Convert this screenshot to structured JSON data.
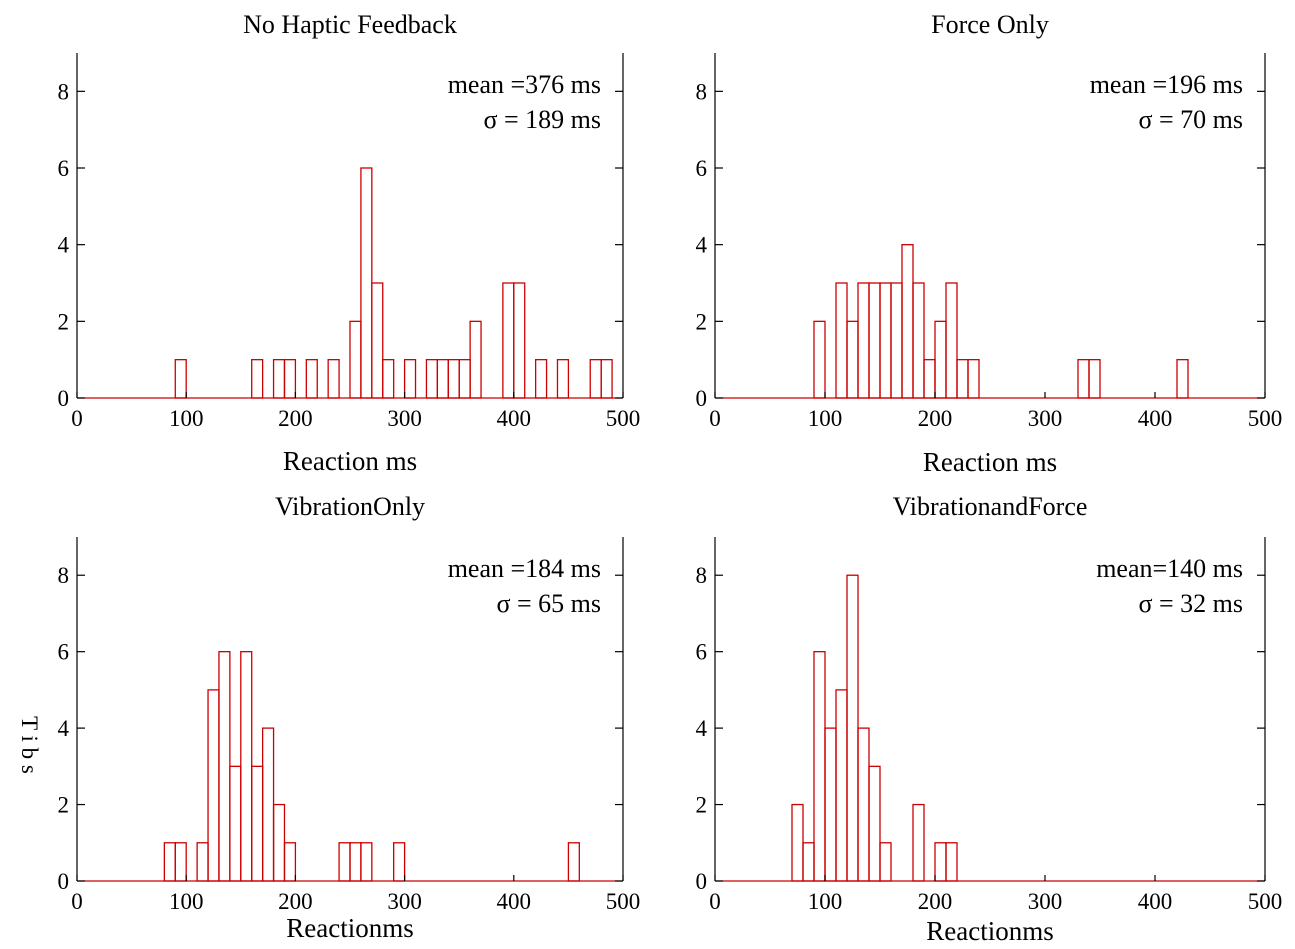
{
  "figure": {
    "ylabel_fragment": "T i b s"
  },
  "chart_data": [
    {
      "type": "histogram",
      "title": "No Haptic Feedback",
      "xlabel": "Reaction ms",
      "ylabel": "",
      "xlim": [
        0,
        500
      ],
      "ylim": [
        0,
        9
      ],
      "xticks": [
        0,
        100,
        200,
        300,
        400,
        500
      ],
      "yticks": [
        0,
        2,
        4,
        6,
        8
      ],
      "bin_width": 10,
      "annotations": [
        "mean =376 ms",
        "σ = 189 ms"
      ],
      "bins": [
        {
          "x": 90,
          "count": 1
        },
        {
          "x": 160,
          "count": 1
        },
        {
          "x": 180,
          "count": 1
        },
        {
          "x": 190,
          "count": 1
        },
        {
          "x": 210,
          "count": 1
        },
        {
          "x": 230,
          "count": 1
        },
        {
          "x": 250,
          "count": 2
        },
        {
          "x": 260,
          "count": 6
        },
        {
          "x": 270,
          "count": 3
        },
        {
          "x": 280,
          "count": 1
        },
        {
          "x": 300,
          "count": 1
        },
        {
          "x": 320,
          "count": 1
        },
        {
          "x": 330,
          "count": 1
        },
        {
          "x": 340,
          "count": 1
        },
        {
          "x": 350,
          "count": 1
        },
        {
          "x": 360,
          "count": 2
        },
        {
          "x": 390,
          "count": 3
        },
        {
          "x": 400,
          "count": 3
        },
        {
          "x": 420,
          "count": 1
        },
        {
          "x": 440,
          "count": 1
        },
        {
          "x": 470,
          "count": 1
        },
        {
          "x": 480,
          "count": 1
        }
      ]
    },
    {
      "type": "histogram",
      "title": "Force Only",
      "xlabel": "Reaction ms",
      "ylabel": "",
      "xlim": [
        0,
        500
      ],
      "ylim": [
        0,
        9
      ],
      "xticks": [
        0,
        100,
        200,
        300,
        400,
        500
      ],
      "yticks": [
        0,
        2,
        4,
        6,
        8
      ],
      "bin_width": 10,
      "annotations": [
        "mean =196 ms",
        "σ = 70 ms"
      ],
      "bins": [
        {
          "x": 90,
          "count": 2
        },
        {
          "x": 110,
          "count": 3
        },
        {
          "x": 120,
          "count": 2
        },
        {
          "x": 130,
          "count": 3
        },
        {
          "x": 140,
          "count": 3
        },
        {
          "x": 150,
          "count": 3
        },
        {
          "x": 160,
          "count": 3
        },
        {
          "x": 170,
          "count": 4
        },
        {
          "x": 180,
          "count": 3
        },
        {
          "x": 190,
          "count": 1
        },
        {
          "x": 200,
          "count": 2
        },
        {
          "x": 210,
          "count": 3
        },
        {
          "x": 220,
          "count": 1
        },
        {
          "x": 230,
          "count": 1
        },
        {
          "x": 330,
          "count": 1
        },
        {
          "x": 340,
          "count": 1
        },
        {
          "x": 420,
          "count": 1
        }
      ]
    },
    {
      "type": "histogram",
      "title": "VibrationOnly",
      "xlabel": "Reactionms",
      "ylabel": "",
      "xlim": [
        0,
        500
      ],
      "ylim": [
        0,
        9
      ],
      "xticks": [
        0,
        100,
        200,
        300,
        400,
        500
      ],
      "yticks": [
        0,
        2,
        4,
        6,
        8
      ],
      "bin_width": 10,
      "annotations": [
        "mean =184 ms",
        "σ = 65 ms"
      ],
      "bins": [
        {
          "x": 80,
          "count": 1
        },
        {
          "x": 90,
          "count": 1
        },
        {
          "x": 110,
          "count": 1
        },
        {
          "x": 120,
          "count": 5
        },
        {
          "x": 130,
          "count": 6
        },
        {
          "x": 140,
          "count": 3
        },
        {
          "x": 150,
          "count": 6
        },
        {
          "x": 160,
          "count": 3
        },
        {
          "x": 170,
          "count": 4
        },
        {
          "x": 180,
          "count": 2
        },
        {
          "x": 190,
          "count": 1
        },
        {
          "x": 240,
          "count": 1
        },
        {
          "x": 250,
          "count": 1
        },
        {
          "x": 260,
          "count": 1
        },
        {
          "x": 290,
          "count": 1
        },
        {
          "x": 450,
          "count": 1
        }
      ]
    },
    {
      "type": "histogram",
      "title": "VibrationandForce",
      "xlabel": "Reactionms",
      "ylabel": "",
      "xlim": [
        0,
        500
      ],
      "ylim": [
        0,
        9
      ],
      "xticks": [
        0,
        100,
        200,
        300,
        400,
        500
      ],
      "yticks": [
        0,
        2,
        4,
        6,
        8
      ],
      "bin_width": 10,
      "annotations": [
        "mean=140 ms",
        "σ = 32 ms"
      ],
      "bins": [
        {
          "x": 70,
          "count": 2
        },
        {
          "x": 80,
          "count": 1
        },
        {
          "x": 90,
          "count": 6
        },
        {
          "x": 100,
          "count": 4
        },
        {
          "x": 110,
          "count": 5
        },
        {
          "x": 120,
          "count": 8
        },
        {
          "x": 130,
          "count": 4
        },
        {
          "x": 140,
          "count": 3
        },
        {
          "x": 150,
          "count": 1
        },
        {
          "x": 180,
          "count": 2
        },
        {
          "x": 200,
          "count": 1
        },
        {
          "x": 210,
          "count": 1
        }
      ]
    }
  ]
}
